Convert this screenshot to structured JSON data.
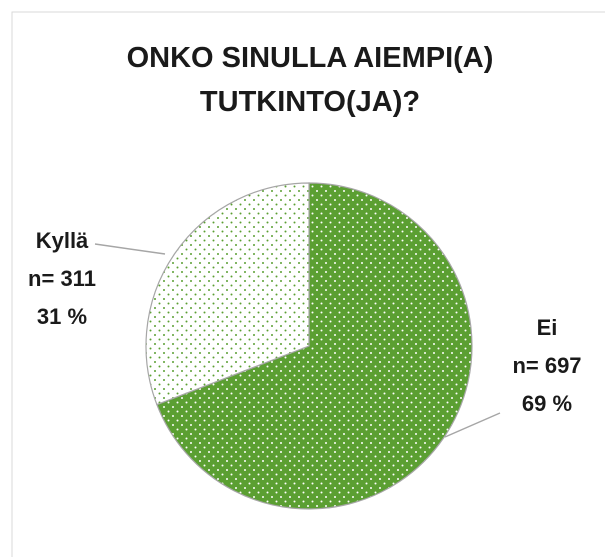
{
  "chart_data": {
    "type": "pie",
    "title": "ONKO SINULLA AIEMPI(A) TUTKINTO(JA)?",
    "categories": [
      "Ei",
      "Kyllä"
    ],
    "values": [
      697,
      311
    ],
    "value_labels": [
      "n= 697",
      "n= 311"
    ],
    "percents": [
      69,
      31
    ],
    "percent_labels": [
      "69 %",
      "31 %"
    ],
    "colors": [
      "#5b9f32",
      "#ffffff"
    ],
    "pattern_colors": [
      "#ffffff",
      "#5b9f32"
    ]
  }
}
